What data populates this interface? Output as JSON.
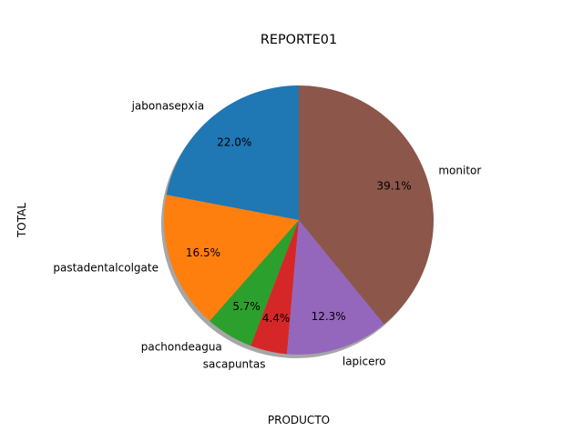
{
  "chart_data": {
    "type": "pie",
    "title": "REPORTE01",
    "xlabel": "PRODUCTO",
    "ylabel": "TOTAL",
    "categories": [
      "jabonasepxia",
      "pastadentalcolgate",
      "pachondeagua",
      "sacapuntas",
      "lapicero",
      "monitor"
    ],
    "values": [
      22.0,
      16.5,
      5.7,
      4.4,
      12.3,
      39.1
    ],
    "percent_labels": [
      "22.0%",
      "16.5%",
      "5.7%",
      "4.4%",
      "12.3%",
      "39.1%"
    ],
    "colors": [
      "#1f77b4",
      "#ff7f0e",
      "#2ca02c",
      "#d62728",
      "#9467bd",
      "#8c564b"
    ],
    "start_angle_deg": 90,
    "direction": "counterclockwise",
    "shadow": true
  }
}
